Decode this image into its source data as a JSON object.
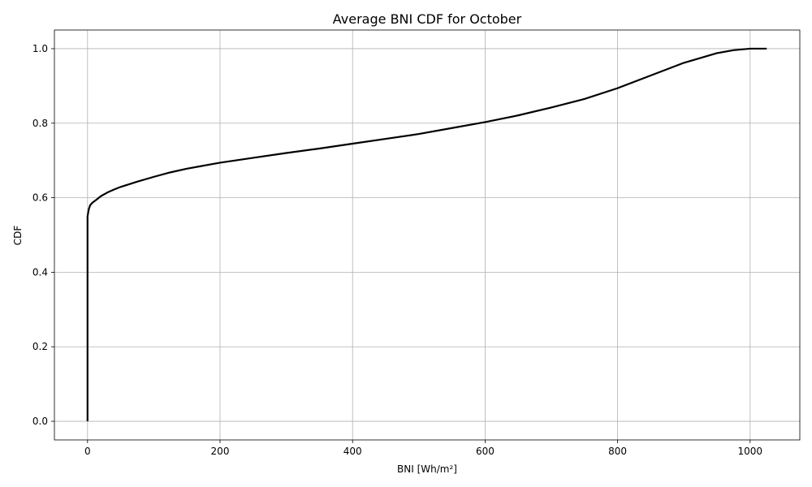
{
  "chart_data": {
    "type": "line",
    "title": "Average BNI CDF for October",
    "xlabel": "BNI [Wh/m²]",
    "ylabel": "CDF",
    "xlim": [
      -50,
      1075
    ],
    "ylim": [
      -0.05,
      1.05
    ],
    "x_ticks": [
      0,
      200,
      400,
      600,
      800,
      1000
    ],
    "y_ticks": [
      0.0,
      0.2,
      0.4,
      0.6,
      0.8,
      1.0
    ],
    "x_tick_labels": [
      "0",
      "200",
      "400",
      "600",
      "800",
      "1000"
    ],
    "y_tick_labels": [
      "0.0",
      "0.2",
      "0.4",
      "0.6",
      "0.8",
      "1.0"
    ],
    "grid": true,
    "line_color": "#000000",
    "series": [
      {
        "x": [
          0,
          0,
          0,
          1,
          2,
          4,
          7,
          10,
          15,
          20,
          30,
          40,
          50,
          75,
          100,
          125,
          150,
          175,
          200,
          250,
          300,
          350,
          400,
          450,
          500,
          550,
          600,
          650,
          700,
          750,
          800,
          850,
          900,
          950,
          975,
          1000,
          1025
        ],
        "y": [
          0.0,
          0.4,
          0.55,
          0.56,
          0.57,
          0.58,
          0.586,
          0.59,
          0.597,
          0.604,
          0.614,
          0.622,
          0.629,
          0.643,
          0.656,
          0.668,
          0.678,
          0.686,
          0.694,
          0.707,
          0.72,
          0.732,
          0.745,
          0.758,
          0.771,
          0.787,
          0.803,
          0.821,
          0.842,
          0.865,
          0.894,
          0.928,
          0.962,
          0.988,
          0.996,
          1.0,
          1.0
        ]
      }
    ]
  }
}
